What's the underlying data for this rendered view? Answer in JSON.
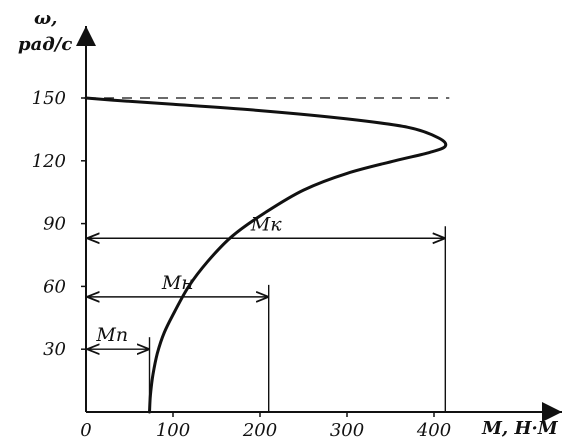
{
  "chart_data": {
    "type": "line",
    "title": "",
    "ylabel": {
      "symbol": "ω,",
      "unit": "рад/с"
    },
    "xlabel": "M, Н·М",
    "xlim": [
      0,
      420
    ],
    "ylim": [
      0,
      160
    ],
    "x_ticks": [
      {
        "value": 0,
        "label": "0"
      },
      {
        "value": 100,
        "label": "100"
      },
      {
        "value": 200,
        "label": "200"
      },
      {
        "value": 300,
        "label": "300"
      },
      {
        "value": 400,
        "label": "400"
      }
    ],
    "y_ticks": [
      {
        "value": 30,
        "label": "30"
      },
      {
        "value": 60,
        "label": "60"
      },
      {
        "value": 90,
        "label": "90"
      },
      {
        "value": 120,
        "label": "120"
      },
      {
        "value": 150,
        "label": "150"
      }
    ],
    "series": [
      {
        "name": "",
        "points": [
          {
            "x": 73,
            "y": 0
          },
          {
            "x": 74,
            "y": 8
          },
          {
            "x": 77,
            "y": 18
          },
          {
            "x": 82,
            "y": 28
          },
          {
            "x": 90,
            "y": 38
          },
          {
            "x": 102,
            "y": 48
          },
          {
            "x": 118,
            "y": 60
          },
          {
            "x": 140,
            "y": 72
          },
          {
            "x": 168,
            "y": 84
          },
          {
            "x": 205,
            "y": 95
          },
          {
            "x": 250,
            "y": 106
          },
          {
            "x": 300,
            "y": 114
          },
          {
            "x": 355,
            "y": 120
          },
          {
            "x": 395,
            "y": 124
          },
          {
            "x": 413,
            "y": 127
          },
          {
            "x": 405,
            "y": 131
          },
          {
            "x": 370,
            "y": 136
          },
          {
            "x": 300,
            "y": 140
          },
          {
            "x": 200,
            "y": 144
          },
          {
            "x": 100,
            "y": 147
          },
          {
            "x": 30,
            "y": 149
          },
          {
            "x": 0,
            "y": 150
          }
        ]
      }
    ],
    "reference_line": {
      "y": 150,
      "x_from": 0,
      "x_to": 413,
      "style": "dashed"
    },
    "annotations": [
      {
        "label": "Mк",
        "y": 83,
        "x_from": 0,
        "x_to": 413
      },
      {
        "label": "Mн",
        "y": 55,
        "x_from": 0,
        "x_to": 210
      },
      {
        "label": "Mп",
        "y": 30,
        "x_from": 0,
        "x_to": 73
      }
    ],
    "grid": false,
    "legend": "none"
  }
}
